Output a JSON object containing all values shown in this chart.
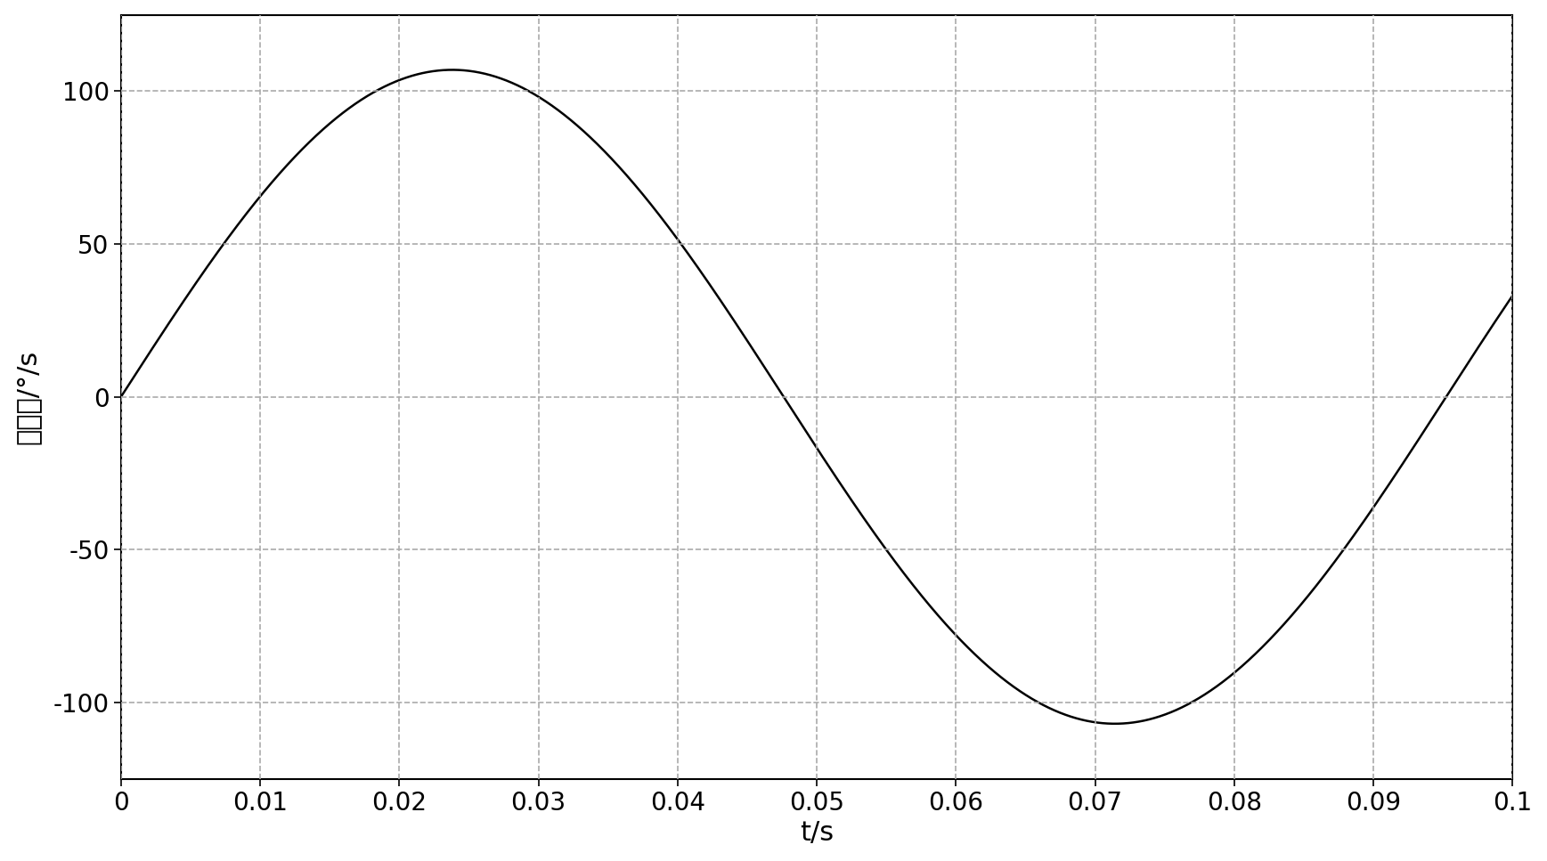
{
  "title": "",
  "xlabel": "t/s",
  "ylabel": "角速率/°/s",
  "xlim": [
    0,
    0.1
  ],
  "ylim": [
    -125,
    125
  ],
  "xticks": [
    0,
    0.01,
    0.02,
    0.03,
    0.04,
    0.05,
    0.06,
    0.07,
    0.08,
    0.09,
    0.1
  ],
  "yticks": [
    -100,
    -50,
    0,
    50,
    100
  ],
  "amplitude": 107,
  "frequency": 10,
  "phase_deg": 0,
  "line_color": "#000000",
  "line_width": 1.8,
  "grid_color": "#aaaaaa",
  "grid_style": "--",
  "grid_alpha": 1.0,
  "background_color": "#ffffff",
  "xlabel_fontsize": 22,
  "ylabel_fontsize": 22,
  "tick_fontsize": 20,
  "figsize": [
    17.37,
    9.67
  ],
  "dpi": 100
}
